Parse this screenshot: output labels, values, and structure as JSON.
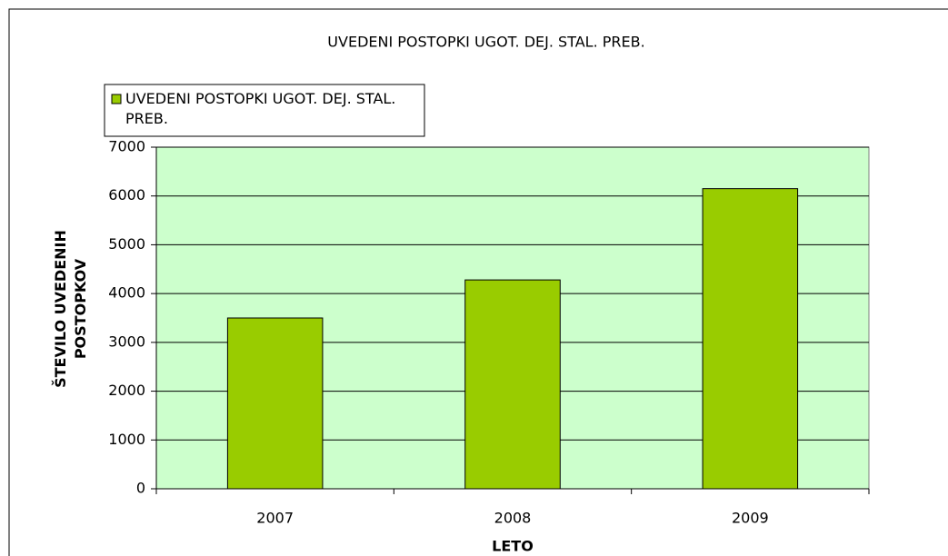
{
  "chart_data": {
    "type": "bar",
    "title": "UVEDENI POSTOPKI UGOT. DEJ. STAL. PREB.",
    "x_label": "LETO",
    "y_label": "ŠTEVILO UVEDENIH POSTOPKOV",
    "categories": [
      "2007",
      "2008",
      "2009"
    ],
    "series": [
      {
        "name": "UVEDENI POSTOPKI UGOT. DEJ. STAL. PREB.",
        "color": "#99cc00",
        "values": [
          3500,
          4280,
          6150
        ]
      }
    ],
    "ylim": [
      0,
      7000
    ],
    "yticks": [
      0,
      1000,
      2000,
      3000,
      4000,
      5000,
      6000,
      7000
    ],
    "grid": true,
    "plot_background": "#ccffcc",
    "legend": "top-left"
  }
}
